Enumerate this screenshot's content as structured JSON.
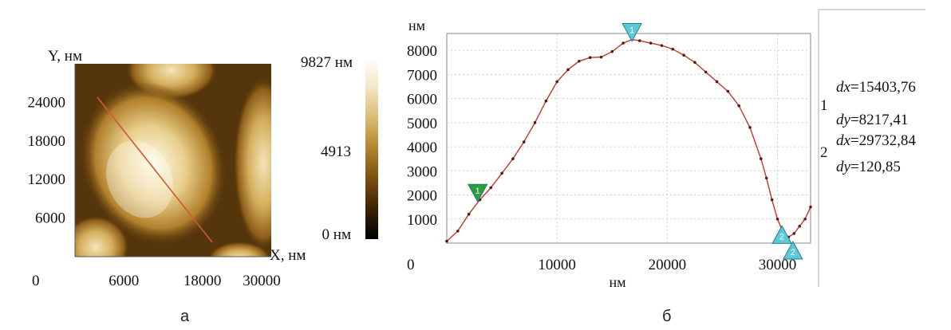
{
  "chart_data": [
    {
      "type": "heatmap",
      "panel_label": "а",
      "x_axis_label": "X, нм",
      "y_axis_label": "Y, нм",
      "x_origin_label": "0",
      "x_ticks": [
        6000,
        18000,
        30000
      ],
      "y_ticks": [
        24000,
        18000,
        12000,
        6000
      ],
      "colorbar": {
        "max_label": "9827 нм",
        "mid_label": "4913",
        "min_label": "0 нм",
        "range": [
          0,
          9827
        ],
        "colors": [
          "#000000",
          "#3a2304",
          "#7a4f13",
          "#b2842c",
          "#d9bb73",
          "#f2e6c4",
          "#ffffff"
        ]
      },
      "profile_line_color": "#cc5a3a"
    },
    {
      "type": "line",
      "panel_label": "б",
      "xlabel": "нм",
      "ylabel": "нм",
      "x_origin_label": "0",
      "x_ticks": [
        10000,
        20000,
        30000
      ],
      "y_ticks": [
        1000,
        2000,
        3000,
        4000,
        5000,
        6000,
        7000,
        8000
      ],
      "xlim": [
        0,
        33000
      ],
      "ylim": [
        0,
        8700
      ],
      "grid": true,
      "series": [
        {
          "color": "#c0392b",
          "x": [
            0,
            1000,
            2000,
            3000,
            4000,
            5000,
            6000,
            7000,
            8000,
            9000,
            10000,
            11000,
            12000,
            13000,
            14000,
            15000,
            16000,
            16800,
            17500,
            18500,
            19500,
            20500,
            21500,
            22500,
            23500,
            24500,
            25500,
            26500,
            27500,
            28500,
            29000,
            29500,
            30000,
            30500,
            31000,
            31500,
            32000,
            32500,
            33000
          ],
          "y": [
            80,
            500,
            1200,
            1800,
            2300,
            2900,
            3500,
            4200,
            5000,
            5900,
            6700,
            7200,
            7550,
            7700,
            7720,
            7950,
            8300,
            8450,
            8400,
            8300,
            8200,
            8050,
            7800,
            7500,
            7100,
            6700,
            6300,
            5700,
            4800,
            3500,
            2700,
            1800,
            1000,
            450,
            250,
            400,
            700,
            1000,
            1500
          ]
        }
      ],
      "markers": [
        {
          "label": "1",
          "x": 2800,
          "y": 1780,
          "color": "#2e9e3a",
          "direction": "down"
        },
        {
          "label": "1",
          "x": 16800,
          "y": 8450,
          "color": "#5cc8d8",
          "direction": "down"
        },
        {
          "label": "2",
          "x": 30400,
          "y": 650,
          "color": "#5cc8d8",
          "direction": "up"
        },
        {
          "label": "2",
          "x": 31400,
          "y": 0,
          "color": "#5cc8d8",
          "direction": "up"
        }
      ],
      "measurements": [
        {
          "index": "1",
          "dx_label": "dx",
          "dx": "=15403,76",
          "dy_label": "dy",
          "dy": "=8217,41"
        },
        {
          "index": "2",
          "dx_label": "dx",
          "dx": "=29732,84",
          "dy_label": "dy",
          "dy": "=120,85"
        }
      ]
    }
  ]
}
